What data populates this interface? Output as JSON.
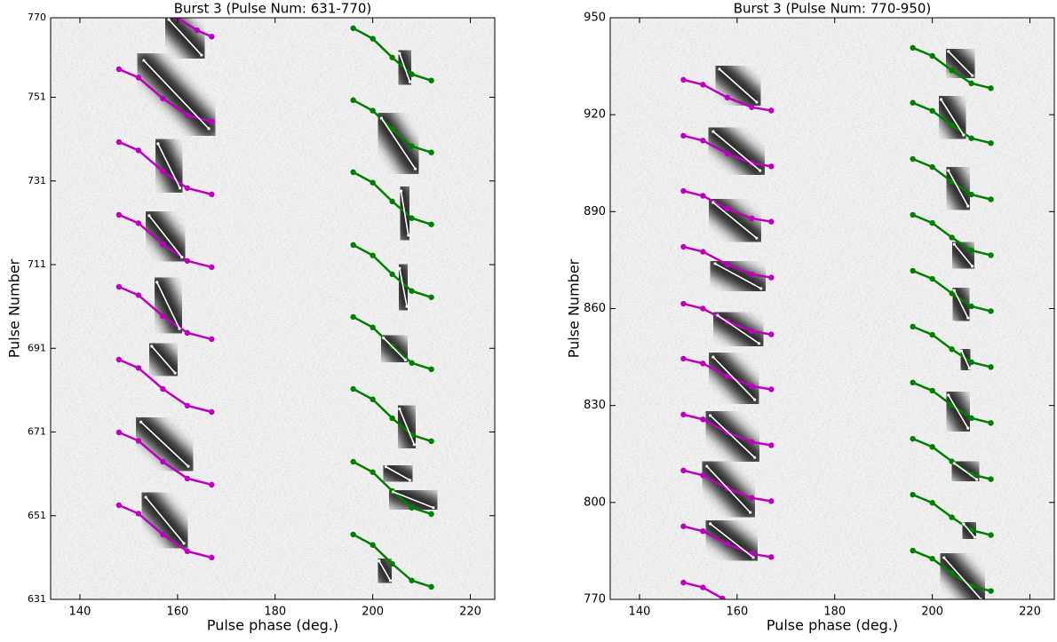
{
  "chart_data": [
    {
      "type": "line",
      "title": "Burst 3 (Pulse Num: 631-770)",
      "xlabel": "Pulse phase (deg.)",
      "ylabel": "Pulse Number",
      "xlim": [
        134,
        225
      ],
      "ylim": [
        631,
        770
      ],
      "xticks": [
        140,
        160,
        180,
        200,
        220
      ],
      "yticks": [
        631,
        651,
        671,
        691,
        711,
        731,
        751,
        770
      ],
      "series": [
        {
          "color": "#c000c0",
          "x": [
            160,
            164,
            167,
            null,
            148,
            152,
            157,
            162,
            167,
            null,
            148,
            152,
            157,
            162,
            167,
            null,
            148,
            152,
            157,
            162,
            167,
            null,
            148,
            152,
            157,
            162,
            167,
            null,
            148,
            152,
            157,
            162,
            167,
            null,
            148,
            152,
            157,
            162,
            167,
            null,
            148,
            152,
            157,
            162,
            167
          ],
          "values": [
            770,
            767,
            765.5,
            null,
            757.7,
            755.7,
            750.7,
            746.7,
            745.2,
            null,
            740.3,
            738.3,
            733.3,
            729.3,
            727.8,
            null,
            722.9,
            720.9,
            715.9,
            711.9,
            710.4,
            null,
            705.7,
            703.7,
            698.7,
            694.7,
            693.2,
            null,
            688.3,
            686.3,
            681.3,
            677.3,
            675.8,
            null,
            670.9,
            668.9,
            663.9,
            659.9,
            658.4,
            null,
            653.5,
            651.5,
            646.5,
            642.5,
            641.0
          ]
        },
        {
          "color": "#008000",
          "x": [
            196,
            200,
            204,
            208,
            212,
            null,
            196,
            200,
            204,
            208,
            212,
            null,
            196,
            200,
            204,
            208,
            212,
            null,
            196,
            200,
            204,
            208,
            212,
            null,
            196,
            200,
            204,
            208,
            212,
            null,
            196,
            200,
            204,
            208,
            212,
            null,
            196,
            200,
            204,
            208,
            212,
            null,
            196,
            200,
            204,
            208,
            212
          ],
          "values": [
            767.5,
            765.0,
            760.5,
            756.5,
            755.0,
            null,
            750.3,
            747.8,
            743.3,
            739.3,
            737.8,
            null,
            733.1,
            730.6,
            726.1,
            722.1,
            720.6,
            null,
            715.7,
            713.2,
            708.7,
            704.7,
            703.2,
            null,
            698.5,
            696.0,
            691.5,
            687.5,
            686.0,
            null,
            681.3,
            678.8,
            674.3,
            670.3,
            668.8,
            null,
            663.9,
            661.4,
            656.9,
            652.9,
            651.4,
            null,
            646.5,
            644.0,
            639.5,
            635.5,
            634.0
          ]
        },
        {
          "color": "#ffffff",
          "x": [
            158.2,
            164.9,
            null,
            153.1,
            166.4,
            null,
            156.0,
            160.5,
            null,
            154.2,
            160.9,
            null,
            155.8,
            160.4,
            null,
            154.7,
            159.5,
            null,
            152.5,
            162.2,
            null,
            153.5,
            161.3,
            null,
            205.5,
            207.6,
            null,
            201.8,
            208.7,
            null,
            205.8,
            207.3,
            null,
            205.5,
            207.0,
            null,
            202.2,
            206.7,
            null,
            205.5,
            208.5,
            null,
            202.7,
            207.6,
            null,
            204.2,
            212.4,
            null,
            201.3,
            203.6
          ],
          "values": [
            769.6,
            761.1,
            null,
            759.8,
            743.5,
            null,
            739.9,
            729.3,
            null,
            722.7,
            712.8,
            null,
            706.8,
            695.7,
            null,
            691.5,
            685.1,
            null,
            673.4,
            662.8,
            null,
            655.4,
            644.4,
            null,
            761.5,
            754.7,
            null,
            746.0,
            733.9,
            null,
            728.6,
            718.0,
            null,
            710.1,
            701.0,
            null,
            693.5,
            688.2,
            null,
            676.5,
            668.0,
            null,
            662.7,
            659.5,
            null,
            656.7,
            652.9,
            null,
            640.2,
            635.5
          ]
        }
      ]
    },
    {
      "type": "line",
      "title": "Burst 3 (Pulse Num: 770-950)",
      "xlabel": "Pulse phase (deg.)",
      "ylabel": "Pulse Number",
      "xlim": [
        134,
        225
      ],
      "ylim": [
        770,
        950
      ],
      "xticks": [
        140,
        160,
        180,
        200,
        220
      ],
      "yticks": [
        770,
        800,
        830,
        860,
        890,
        920,
        950
      ],
      "series": [
        {
          "color": "#c000c0",
          "x": [
            149,
            153,
            158,
            163,
            167,
            null,
            149,
            153,
            158,
            163,
            167,
            null,
            149,
            153,
            158,
            163,
            167,
            null,
            149,
            153,
            158,
            163,
            167,
            null,
            149,
            153,
            158,
            163,
            167,
            null,
            149,
            153,
            158,
            163,
            167,
            null,
            149,
            153,
            158,
            163,
            167,
            null,
            149,
            153,
            158,
            163,
            167,
            null,
            149,
            153,
            158,
            163,
            167,
            null,
            149,
            153,
            157
          ],
          "values": [
            930.8,
            929.3,
            925.3,
            922.3,
            921.3,
            null,
            913.5,
            912.0,
            908.0,
            905.0,
            904.0,
            null,
            896.4,
            894.9,
            890.9,
            887.9,
            886.9,
            null,
            879.1,
            877.6,
            873.6,
            870.6,
            869.6,
            null,
            861.5,
            860.0,
            856.0,
            853.0,
            852.0,
            null,
            844.5,
            843.0,
            839.0,
            836.0,
            835.0,
            null,
            827.2,
            825.7,
            821.7,
            818.7,
            817.7,
            null,
            809.9,
            808.4,
            804.4,
            801.4,
            800.4,
            null,
            792.6,
            791.1,
            787.1,
            784.1,
            783.1,
            null,
            775.2,
            773.7,
            770.3
          ]
        },
        {
          "color": "#008000",
          "x": [
            196,
            200,
            204,
            208,
            212,
            null,
            196,
            200,
            204,
            208,
            212,
            null,
            196,
            200,
            204,
            208,
            212,
            null,
            196,
            200,
            204,
            208,
            212,
            null,
            196,
            200,
            204,
            208,
            212,
            null,
            196,
            200,
            204,
            208,
            212,
            null,
            196,
            200,
            204,
            208,
            212,
            null,
            196,
            200,
            204,
            208,
            212,
            null,
            196,
            200,
            204,
            208,
            212,
            null,
            196,
            200,
            204,
            208,
            212
          ],
          "values": [
            940.7,
            938.2,
            933.7,
            929.7,
            928.2,
            null,
            923.7,
            921.2,
            916.7,
            912.7,
            911.2,
            null,
            906.3,
            903.8,
            899.3,
            895.3,
            893.8,
            null,
            889.0,
            886.5,
            882.0,
            878.0,
            876.5,
            null,
            871.7,
            869.2,
            864.7,
            860.7,
            859.2,
            null,
            854.4,
            851.9,
            847.4,
            843.4,
            841.9,
            null,
            837.1,
            834.6,
            830.1,
            826.1,
            824.6,
            null,
            819.7,
            817.2,
            812.7,
            808.7,
            807.2,
            null,
            802.4,
            799.9,
            795.4,
            791.4,
            789.9,
            null,
            785.1,
            782.6,
            778.1,
            774.1,
            772.6
          ]
        },
        {
          "color": "#ffffff",
          "x": [
            156.4,
            164.0,
            null,
            155.1,
            164.7,
            null,
            155.1,
            164.0,
            null,
            155.5,
            164.9,
            null,
            156.0,
            164.5,
            null,
            155.1,
            163.6,
            null,
            154.5,
            163.6,
            null,
            153.8,
            162.7,
            null,
            154.5,
            163.3,
            null,
            203.3,
            208.2,
            null,
            201.8,
            206.4,
            null,
            203.3,
            207.3,
            null,
            204.5,
            208.2,
            null,
            204.5,
            207.3,
            null,
            206.0,
            207.6,
            null,
            203.3,
            207.3,
            null,
            204.5,
            209.1,
            null,
            206.4,
            208.7,
            null,
            202.4,
            210.0
          ],
          "values": [
            934.1,
            923.9,
            null,
            914.8,
            902.7,
            null,
            892.8,
            881.8,
            null,
            873.9,
            866.2,
            null,
            857.9,
            849.2,
            null,
            845.0,
            831.8,
            null,
            826.9,
            813.9,
            null,
            811.2,
            796.9,
            null,
            793.4,
            783.0,
            null,
            939.6,
            932.1,
            null,
            924.7,
            913.7,
            null,
            902.7,
            891.7,
            null,
            879.9,
            873.1,
            null,
            865.6,
            857.1,
            null,
            846.9,
            841.5,
            null,
            833.2,
            823.0,
            null,
            812.1,
            807.1,
            null,
            793.4,
            789.2,
            null,
            782.9,
            770.0
          ]
        }
      ]
    }
  ]
}
